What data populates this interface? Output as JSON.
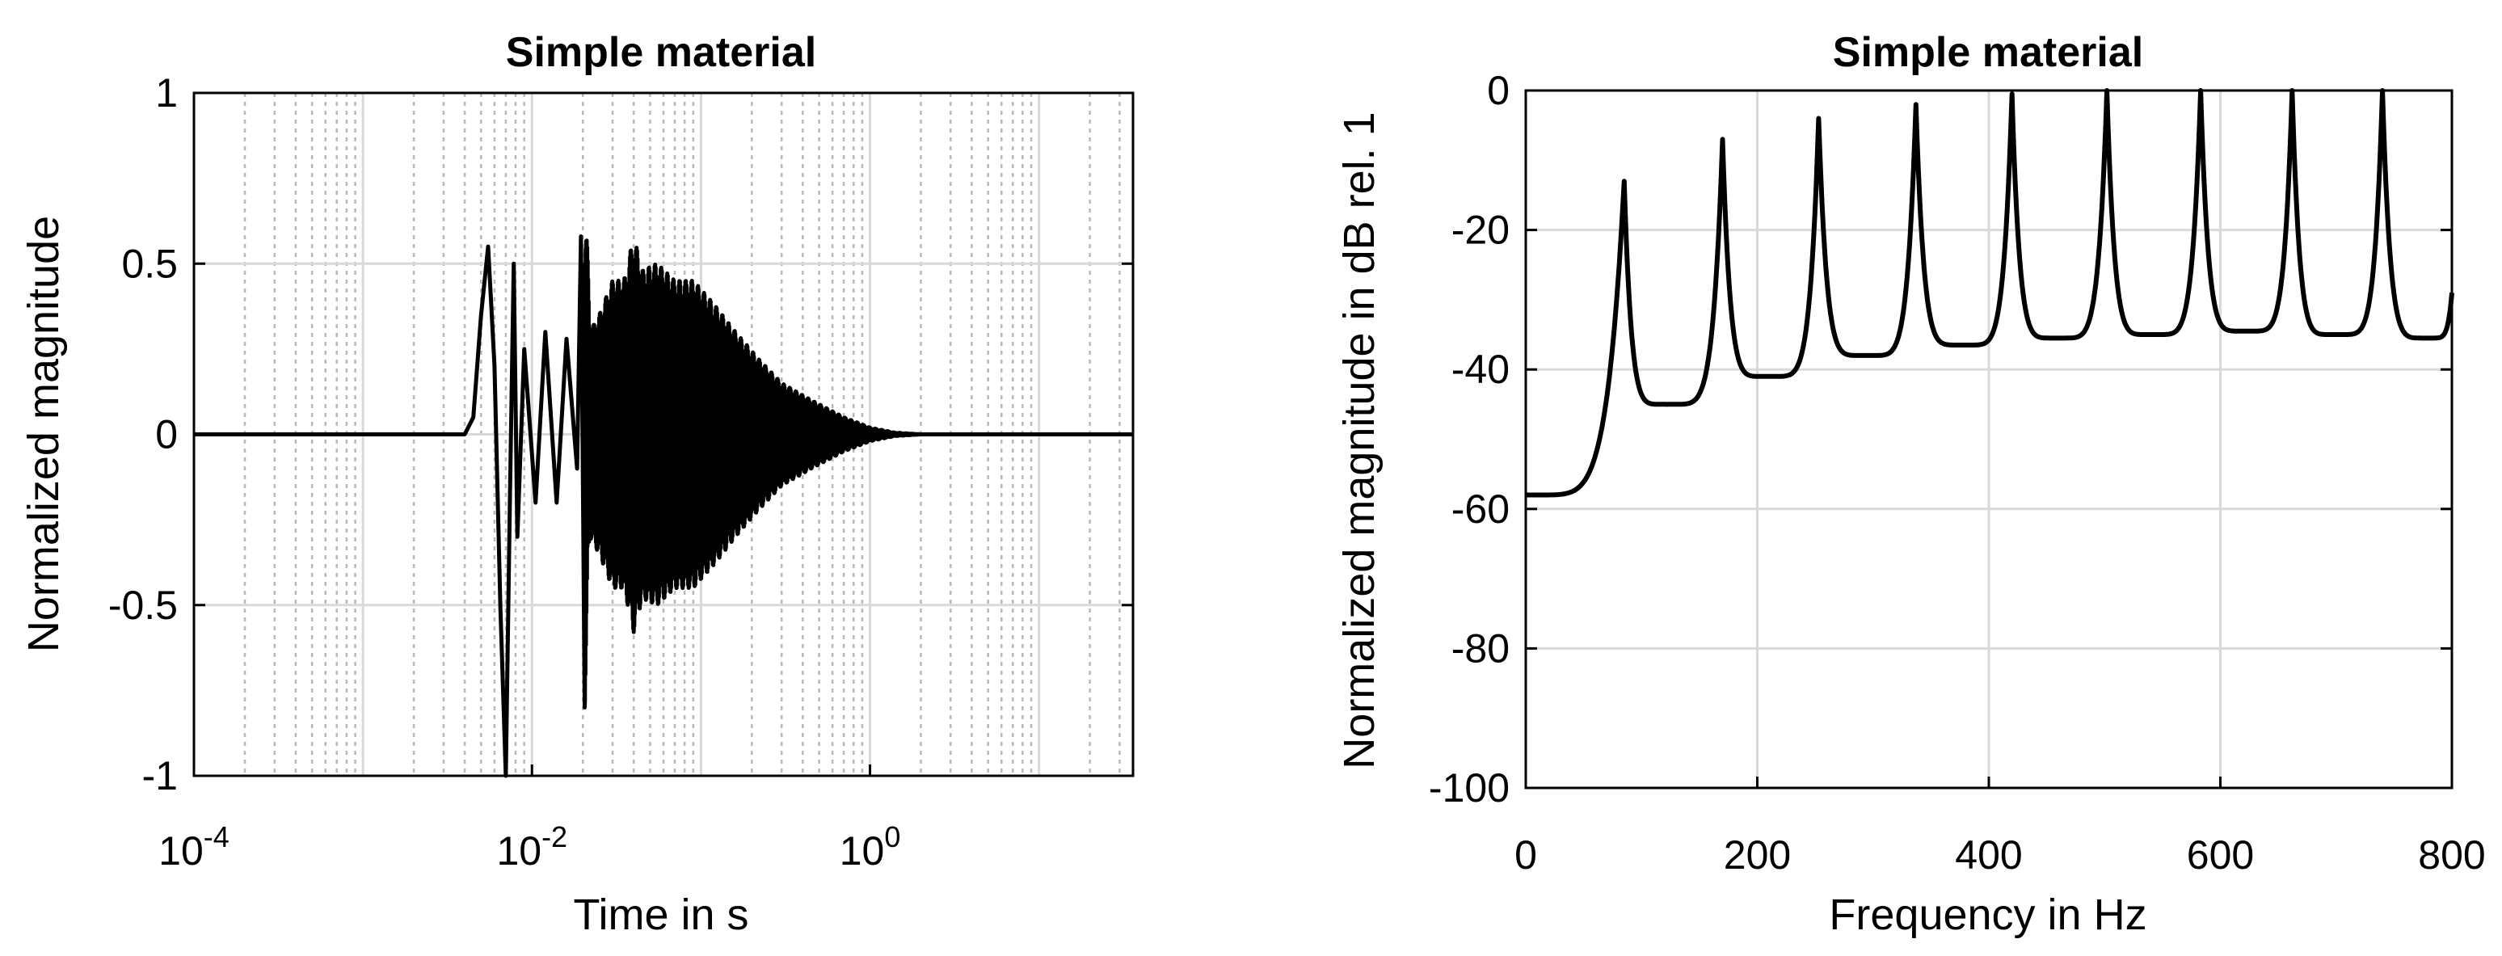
{
  "chart_data": [
    {
      "type": "line",
      "title": "Simple material",
      "xlabel": "Time in s",
      "ylabel": "Normalized magnitude",
      "xscale": "log",
      "xlim": [
        0.0001,
        36
      ],
      "ylim": [
        -1,
        1
      ],
      "xticks": [
        0.0001,
        0.01,
        1
      ],
      "xtick_labels": [
        {
          "base": "10",
          "exp": "-4"
        },
        {
          "base": "10",
          "exp": "-2"
        },
        {
          "base": "10",
          "exp": "0"
        }
      ],
      "yticks": [
        -1,
        -0.5,
        0,
        0.5,
        1
      ],
      "ytick_labels": [
        "-1",
        "-0.5",
        "0",
        "0.5",
        "1"
      ],
      "grid": true,
      "minor_grid": true,
      "line_color": "#000000",
      "waveform_points": [
        [
          0.0001,
          0
        ],
        [
          0.004,
          0
        ],
        [
          0.0045,
          0.05
        ],
        [
          0.005,
          0.35
        ],
        [
          0.0055,
          0.55
        ],
        [
          0.006,
          0.2
        ],
        [
          0.0065,
          -0.5
        ],
        [
          0.007,
          -1.0
        ],
        [
          0.0074,
          -0.2
        ],
        [
          0.0078,
          0.5
        ],
        [
          0.0082,
          -0.3
        ],
        [
          0.009,
          0.25
        ],
        [
          0.0105,
          -0.2
        ],
        [
          0.012,
          0.3
        ],
        [
          0.014,
          -0.2
        ],
        [
          0.016,
          0.28
        ],
        [
          0.0185,
          -0.1
        ],
        [
          0.0195,
          0.58
        ],
        [
          0.0205,
          -0.8
        ],
        [
          0.022,
          0.3
        ],
        [
          0.025,
          -0.35
        ],
        [
          0.03,
          0.45
        ],
        [
          0.035,
          -0.45
        ],
        [
          0.04,
          0.58
        ],
        [
          0.045,
          -0.48
        ],
        [
          0.055,
          0.5
        ],
        [
          0.07,
          -0.45
        ],
        [
          0.09,
          0.45
        ],
        [
          0.12,
          -0.38
        ],
        [
          0.16,
          0.3
        ],
        [
          0.22,
          -0.22
        ],
        [
          0.3,
          0.15
        ],
        [
          0.45,
          -0.1
        ],
        [
          0.7,
          0.05
        ],
        [
          1.0,
          -0.02
        ],
        [
          1.4,
          0.005
        ],
        [
          2.0,
          0
        ],
        [
          36,
          0
        ]
      ]
    },
    {
      "type": "line",
      "title": "Simple material",
      "xlabel": "Frequency in Hz",
      "ylabel": "Normalized magnitude in dB rel. 1",
      "xlim": [
        0,
        800
      ],
      "ylim": [
        -100,
        0
      ],
      "xticks": [
        0,
        200,
        400,
        600,
        800
      ],
      "xtick_labels": [
        "0",
        "200",
        "400",
        "600",
        "800"
      ],
      "yticks": [
        -100,
        -80,
        -60,
        -40,
        -20,
        0
      ],
      "ytick_labels": [
        "-100",
        "-80",
        "-60",
        "-40",
        "-20",
        "0"
      ],
      "grid": true,
      "line_color": "#000000",
      "resonance_peaks": [
        {
          "f": 85,
          "db": -13
        },
        {
          "f": 170,
          "db": -7
        },
        {
          "f": 253,
          "db": -4
        },
        {
          "f": 337,
          "db": -2
        },
        {
          "f": 420,
          "db": -0.5
        },
        {
          "f": 502,
          "db": 0
        },
        {
          "f": 583,
          "db": 0
        },
        {
          "f": 662,
          "db": 0
        },
        {
          "f": 740,
          "db": 0
        }
      ],
      "valleys": [
        {
          "f": 0,
          "db": -58
        },
        {
          "f": 122,
          "db": -45
        },
        {
          "f": 209,
          "db": -41
        },
        {
          "f": 294,
          "db": -38
        },
        {
          "f": 378,
          "db": -36.5
        },
        {
          "f": 459,
          "db": -35.5
        },
        {
          "f": 541,
          "db": -35
        },
        {
          "f": 622,
          "db": -34.5
        },
        {
          "f": 700,
          "db": -35
        },
        {
          "f": 780,
          "db": -35.5
        },
        {
          "f": 800,
          "db": -29
        }
      ]
    }
  ]
}
